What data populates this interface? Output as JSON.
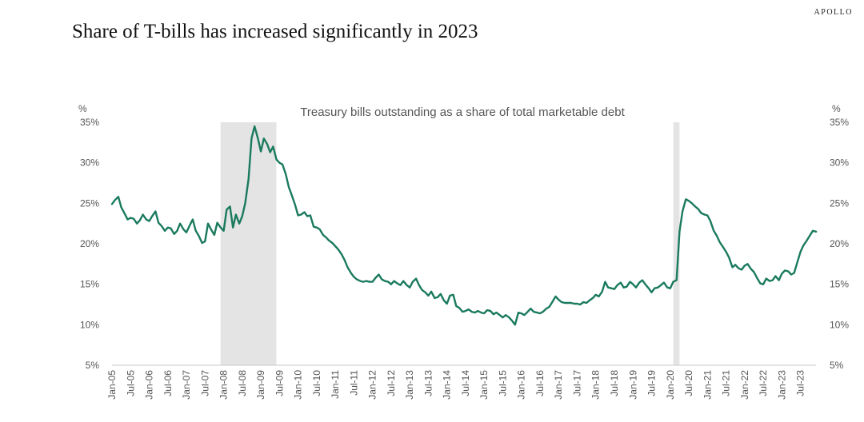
{
  "brand": "APOLLO",
  "headline": "Share of T-bills has increased significantly in 2023",
  "chart_data": {
    "type": "line",
    "title": "Treasury bills outstanding as a share of total marketable debt",
    "ylabel_left": "%",
    "ylabel_right": "%",
    "ylim": [
      5,
      35
    ],
    "yticks": [
      5,
      10,
      15,
      20,
      25,
      30,
      35
    ],
    "ytick_labels": [
      "5%",
      "10%",
      "15%",
      "20%",
      "25%",
      "30%",
      "35%"
    ],
    "xlim": [
      2005.0,
      2023.917
    ],
    "xtick_labels": [
      "Jan-05",
      "Jul-05",
      "Jan-06",
      "Jul-06",
      "Jan-07",
      "Jul-07",
      "Jan-08",
      "Jul-08",
      "Jan-09",
      "Jul-09",
      "Jan-10",
      "Jul-10",
      "Jan-11",
      "Jul-11",
      "Jan-12",
      "Jul-12",
      "Jan-13",
      "Jul-13",
      "Jan-14",
      "Jul-14",
      "Jan-15",
      "Jul-15",
      "Jan-16",
      "Jul-16",
      "Jan-17",
      "Jul-17",
      "Jan-18",
      "Jul-18",
      "Jan-19",
      "Jul-19",
      "Jan-20",
      "Jul-20",
      "Jan-21",
      "Jul-21",
      "Jan-22",
      "Jul-22",
      "Jan-23",
      "Jul-23"
    ],
    "xtick_values": [
      2005.0,
      2005.5,
      2006.0,
      2006.5,
      2007.0,
      2007.5,
      2008.0,
      2008.5,
      2009.0,
      2009.5,
      2010.0,
      2010.5,
      2011.0,
      2011.5,
      2012.0,
      2012.5,
      2013.0,
      2013.5,
      2014.0,
      2014.5,
      2015.0,
      2015.5,
      2016.0,
      2016.5,
      2017.0,
      2017.5,
      2018.0,
      2018.5,
      2019.0,
      2019.5,
      2020.0,
      2020.5,
      2021.0,
      2021.5,
      2022.0,
      2022.5,
      2023.0,
      2023.5
    ],
    "recessions": [
      [
        2007.917,
        2009.417
      ],
      [
        2020.083,
        2020.25
      ]
    ],
    "series": [
      {
        "name": "Treasury bills share of marketable debt",
        "color": "#1a7a5e",
        "points": [
          [
            2005.0,
            24.9
          ],
          [
            2005.08,
            25.4
          ],
          [
            2005.17,
            25.8
          ],
          [
            2005.25,
            24.5
          ],
          [
            2005.33,
            23.8
          ],
          [
            2005.42,
            23.0
          ],
          [
            2005.5,
            23.2
          ],
          [
            2005.58,
            23.1
          ],
          [
            2005.67,
            22.5
          ],
          [
            2005.75,
            22.9
          ],
          [
            2005.83,
            23.6
          ],
          [
            2005.92,
            23.0
          ],
          [
            2006.0,
            22.8
          ],
          [
            2006.08,
            23.4
          ],
          [
            2006.17,
            24.0
          ],
          [
            2006.25,
            22.6
          ],
          [
            2006.33,
            22.2
          ],
          [
            2006.42,
            21.6
          ],
          [
            2006.5,
            22.0
          ],
          [
            2006.58,
            21.9
          ],
          [
            2006.67,
            21.2
          ],
          [
            2006.75,
            21.6
          ],
          [
            2006.83,
            22.5
          ],
          [
            2006.92,
            21.8
          ],
          [
            2007.0,
            21.4
          ],
          [
            2007.08,
            22.2
          ],
          [
            2007.17,
            23.0
          ],
          [
            2007.25,
            21.6
          ],
          [
            2007.33,
            21.0
          ],
          [
            2007.42,
            20.1
          ],
          [
            2007.5,
            20.3
          ],
          [
            2007.58,
            22.5
          ],
          [
            2007.67,
            21.7
          ],
          [
            2007.75,
            21.1
          ],
          [
            2007.83,
            22.6
          ],
          [
            2007.92,
            22.0
          ],
          [
            2008.0,
            21.6
          ],
          [
            2008.08,
            24.2
          ],
          [
            2008.17,
            24.6
          ],
          [
            2008.25,
            22.0
          ],
          [
            2008.33,
            23.6
          ],
          [
            2008.42,
            22.5
          ],
          [
            2008.5,
            23.4
          ],
          [
            2008.58,
            25.0
          ],
          [
            2008.67,
            28.0
          ],
          [
            2008.75,
            33.0
          ],
          [
            2008.83,
            34.5
          ],
          [
            2008.92,
            33.0
          ],
          [
            2009.0,
            31.4
          ],
          [
            2009.08,
            33.0
          ],
          [
            2009.17,
            32.3
          ],
          [
            2009.25,
            31.3
          ],
          [
            2009.33,
            32.0
          ],
          [
            2009.42,
            30.4
          ],
          [
            2009.5,
            30.0
          ],
          [
            2009.58,
            29.8
          ],
          [
            2009.67,
            28.6
          ],
          [
            2009.75,
            27.0
          ],
          [
            2009.83,
            26.0
          ],
          [
            2009.92,
            24.8
          ],
          [
            2010.0,
            23.5
          ],
          [
            2010.08,
            23.6
          ],
          [
            2010.17,
            23.9
          ],
          [
            2010.25,
            23.4
          ],
          [
            2010.33,
            23.5
          ],
          [
            2010.42,
            22.1
          ],
          [
            2010.5,
            22.0
          ],
          [
            2010.58,
            21.8
          ],
          [
            2010.67,
            21.1
          ],
          [
            2010.75,
            20.8
          ],
          [
            2010.83,
            20.4
          ],
          [
            2010.92,
            20.1
          ],
          [
            2011.0,
            19.7
          ],
          [
            2011.08,
            19.3
          ],
          [
            2011.17,
            18.7
          ],
          [
            2011.25,
            18.0
          ],
          [
            2011.33,
            17.1
          ],
          [
            2011.42,
            16.4
          ],
          [
            2011.5,
            15.9
          ],
          [
            2011.58,
            15.6
          ],
          [
            2011.67,
            15.4
          ],
          [
            2011.75,
            15.3
          ],
          [
            2011.83,
            15.4
          ],
          [
            2011.92,
            15.3
          ],
          [
            2012.0,
            15.3
          ],
          [
            2012.08,
            15.8
          ],
          [
            2012.17,
            16.2
          ],
          [
            2012.25,
            15.6
          ],
          [
            2012.33,
            15.4
          ],
          [
            2012.42,
            15.3
          ],
          [
            2012.5,
            15.0
          ],
          [
            2012.58,
            15.4
          ],
          [
            2012.67,
            15.1
          ],
          [
            2012.75,
            14.9
          ],
          [
            2012.83,
            15.4
          ],
          [
            2012.92,
            14.9
          ],
          [
            2013.0,
            14.6
          ],
          [
            2013.08,
            15.3
          ],
          [
            2013.17,
            15.7
          ],
          [
            2013.25,
            14.9
          ],
          [
            2013.33,
            14.3
          ],
          [
            2013.42,
            14.0
          ],
          [
            2013.5,
            13.6
          ],
          [
            2013.58,
            14.1
          ],
          [
            2013.67,
            13.3
          ],
          [
            2013.75,
            13.4
          ],
          [
            2013.83,
            13.8
          ],
          [
            2013.92,
            13.0
          ],
          [
            2014.0,
            12.6
          ],
          [
            2014.08,
            13.6
          ],
          [
            2014.17,
            13.7
          ],
          [
            2014.25,
            12.3
          ],
          [
            2014.33,
            12.1
          ],
          [
            2014.42,
            11.6
          ],
          [
            2014.5,
            11.7
          ],
          [
            2014.58,
            11.9
          ],
          [
            2014.67,
            11.6
          ],
          [
            2014.75,
            11.5
          ],
          [
            2014.83,
            11.7
          ],
          [
            2014.92,
            11.5
          ],
          [
            2015.0,
            11.4
          ],
          [
            2015.08,
            11.8
          ],
          [
            2015.17,
            11.7
          ],
          [
            2015.25,
            11.3
          ],
          [
            2015.33,
            11.5
          ],
          [
            2015.42,
            11.2
          ],
          [
            2015.5,
            10.9
          ],
          [
            2015.58,
            11.2
          ],
          [
            2015.67,
            10.9
          ],
          [
            2015.75,
            10.5
          ],
          [
            2015.83,
            10.0
          ],
          [
            2015.92,
            11.5
          ],
          [
            2016.0,
            11.4
          ],
          [
            2016.08,
            11.2
          ],
          [
            2016.17,
            11.6
          ],
          [
            2016.25,
            12.0
          ],
          [
            2016.33,
            11.6
          ],
          [
            2016.42,
            11.5
          ],
          [
            2016.5,
            11.4
          ],
          [
            2016.58,
            11.6
          ],
          [
            2016.67,
            12.0
          ],
          [
            2016.75,
            12.2
          ],
          [
            2016.83,
            12.8
          ],
          [
            2016.92,
            13.5
          ],
          [
            2017.0,
            13.1
          ],
          [
            2017.08,
            12.8
          ],
          [
            2017.17,
            12.7
          ],
          [
            2017.25,
            12.7
          ],
          [
            2017.33,
            12.7
          ],
          [
            2017.42,
            12.6
          ],
          [
            2017.5,
            12.6
          ],
          [
            2017.58,
            12.5
          ],
          [
            2017.67,
            12.8
          ],
          [
            2017.75,
            12.7
          ],
          [
            2017.83,
            13.0
          ],
          [
            2017.92,
            13.3
          ],
          [
            2018.0,
            13.7
          ],
          [
            2018.08,
            13.5
          ],
          [
            2018.17,
            14.1
          ],
          [
            2018.25,
            15.3
          ],
          [
            2018.33,
            14.6
          ],
          [
            2018.42,
            14.5
          ],
          [
            2018.5,
            14.4
          ],
          [
            2018.58,
            14.9
          ],
          [
            2018.67,
            15.2
          ],
          [
            2018.75,
            14.6
          ],
          [
            2018.83,
            14.7
          ],
          [
            2018.92,
            15.3
          ],
          [
            2019.0,
            15.0
          ],
          [
            2019.08,
            14.6
          ],
          [
            2019.17,
            15.2
          ],
          [
            2019.25,
            15.5
          ],
          [
            2019.33,
            15.0
          ],
          [
            2019.42,
            14.5
          ],
          [
            2019.5,
            14.0
          ],
          [
            2019.58,
            14.5
          ],
          [
            2019.67,
            14.6
          ],
          [
            2019.75,
            14.9
          ],
          [
            2019.83,
            15.2
          ],
          [
            2019.92,
            14.6
          ],
          [
            2020.0,
            14.5
          ],
          [
            2020.08,
            15.3
          ],
          [
            2020.17,
            15.5
          ],
          [
            2020.25,
            21.5
          ],
          [
            2020.33,
            24.0
          ],
          [
            2020.42,
            25.5
          ],
          [
            2020.5,
            25.3
          ],
          [
            2020.58,
            25.0
          ],
          [
            2020.67,
            24.6
          ],
          [
            2020.75,
            24.3
          ],
          [
            2020.83,
            23.8
          ],
          [
            2020.92,
            23.6
          ],
          [
            2021.0,
            23.5
          ],
          [
            2021.08,
            22.8
          ],
          [
            2021.17,
            21.6
          ],
          [
            2021.25,
            21.0
          ],
          [
            2021.33,
            20.2
          ],
          [
            2021.42,
            19.6
          ],
          [
            2021.5,
            19.0
          ],
          [
            2021.58,
            18.3
          ],
          [
            2021.67,
            17.1
          ],
          [
            2021.75,
            17.4
          ],
          [
            2021.83,
            17.0
          ],
          [
            2021.92,
            16.8
          ],
          [
            2022.0,
            17.3
          ],
          [
            2022.08,
            17.5
          ],
          [
            2022.17,
            16.9
          ],
          [
            2022.25,
            16.5
          ],
          [
            2022.33,
            15.8
          ],
          [
            2022.42,
            15.1
          ],
          [
            2022.5,
            15.0
          ],
          [
            2022.58,
            15.7
          ],
          [
            2022.67,
            15.4
          ],
          [
            2022.75,
            15.5
          ],
          [
            2022.83,
            16.0
          ],
          [
            2022.92,
            15.5
          ],
          [
            2023.0,
            16.3
          ],
          [
            2023.08,
            16.7
          ],
          [
            2023.17,
            16.6
          ],
          [
            2023.25,
            16.2
          ],
          [
            2023.33,
            16.4
          ],
          [
            2023.42,
            17.8
          ],
          [
            2023.5,
            19.0
          ],
          [
            2023.58,
            19.8
          ],
          [
            2023.67,
            20.4
          ],
          [
            2023.75,
            21.0
          ],
          [
            2023.83,
            21.6
          ],
          [
            2023.92,
            21.5
          ]
        ]
      }
    ]
  }
}
